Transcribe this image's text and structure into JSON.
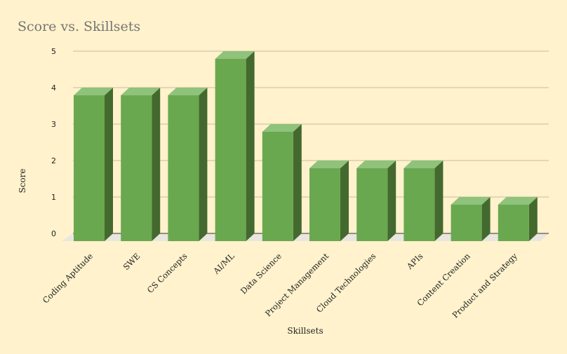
{
  "chart_data": {
    "type": "bar",
    "title": "Score vs. Skillsets",
    "xlabel": "Skillsets",
    "ylabel": "Score",
    "categories": [
      "Coding Aptitude",
      "SWE",
      "CS Concepts",
      "AI/ML",
      "Data Science",
      "Project Management",
      "Cloud Technologies",
      "APIs",
      "Content Creation",
      "Product and Strategy"
    ],
    "values": [
      4,
      4,
      4,
      5,
      3,
      2,
      2,
      2,
      1,
      1
    ],
    "ylim": [
      0,
      5
    ],
    "yticks": [
      "0",
      "1",
      "2",
      "3",
      "4",
      "5"
    ],
    "grid": true,
    "style": "3d-column",
    "colors": {
      "front": "#6aa84f",
      "top": "#8fc27a",
      "side": "#44692f",
      "floor": "#e8e6df",
      "gridline": "#c6bd9a",
      "background": "#fff2cc"
    }
  }
}
